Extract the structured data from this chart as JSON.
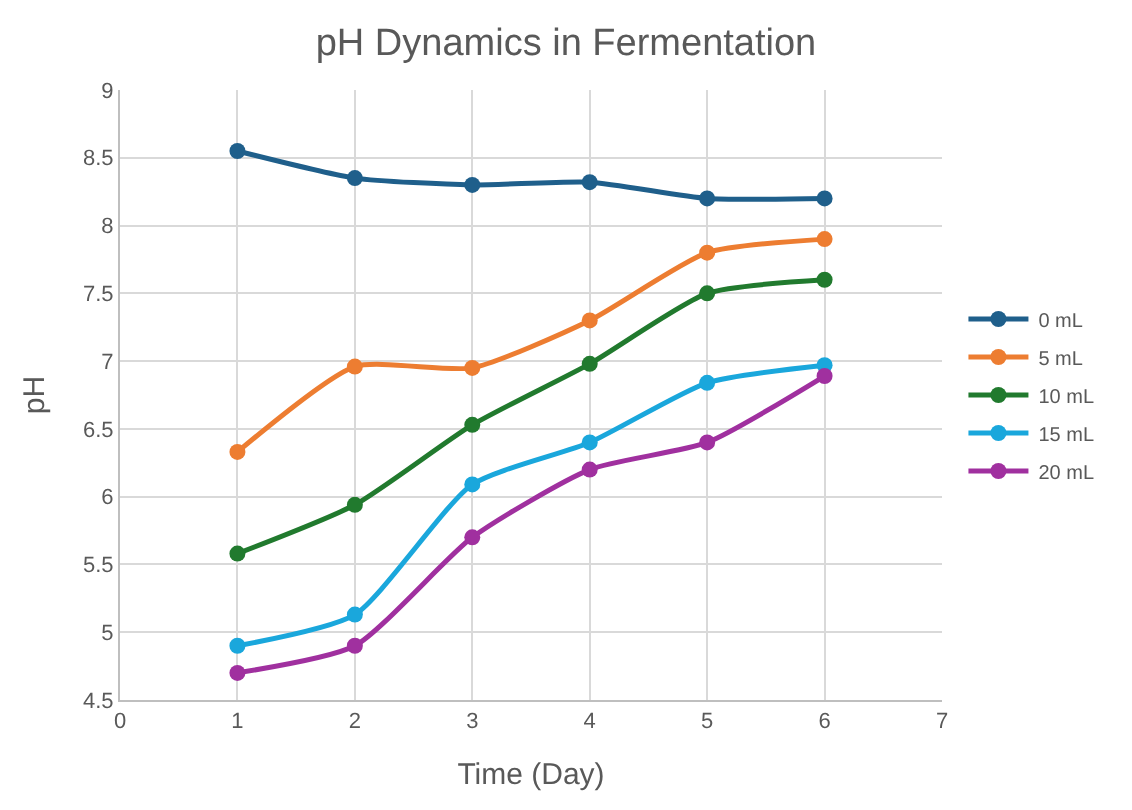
{
  "chart_data": {
    "type": "line",
    "title": "pH Dynamics in Fermentation",
    "xlabel": "Time (Day)",
    "ylabel": "pH",
    "x": [
      1,
      2,
      3,
      4,
      5,
      6
    ],
    "series": [
      {
        "name": "0 mL",
        "color": "#1f5f8b",
        "values": [
          8.55,
          8.35,
          8.3,
          8.32,
          8.2,
          8.2
        ]
      },
      {
        "name": "5 mL",
        "color": "#ed7d31",
        "values": [
          6.33,
          6.96,
          6.95,
          7.3,
          7.8,
          7.9
        ]
      },
      {
        "name": "10 mL",
        "color": "#217a2e",
        "values": [
          5.58,
          5.94,
          6.53,
          6.98,
          7.5,
          7.6
        ]
      },
      {
        "name": "15 mL",
        "color": "#1aa7dc",
        "values": [
          4.9,
          5.13,
          6.09,
          6.4,
          6.84,
          6.97
        ]
      },
      {
        "name": "20 mL",
        "color": "#a0309f",
        "values": [
          4.7,
          4.9,
          5.7,
          6.2,
          6.4,
          6.89
        ]
      }
    ],
    "xlim": [
      0,
      7
    ],
    "xticks": [
      0,
      1,
      2,
      3,
      4,
      5,
      6,
      7
    ],
    "ylim": [
      4.5,
      9
    ],
    "yticks": [
      4.5,
      5,
      5.5,
      6,
      6.5,
      7,
      7.5,
      8,
      8.5,
      9
    ],
    "grid": true,
    "legend": "right",
    "marker": "circle",
    "line_style": "solid"
  }
}
